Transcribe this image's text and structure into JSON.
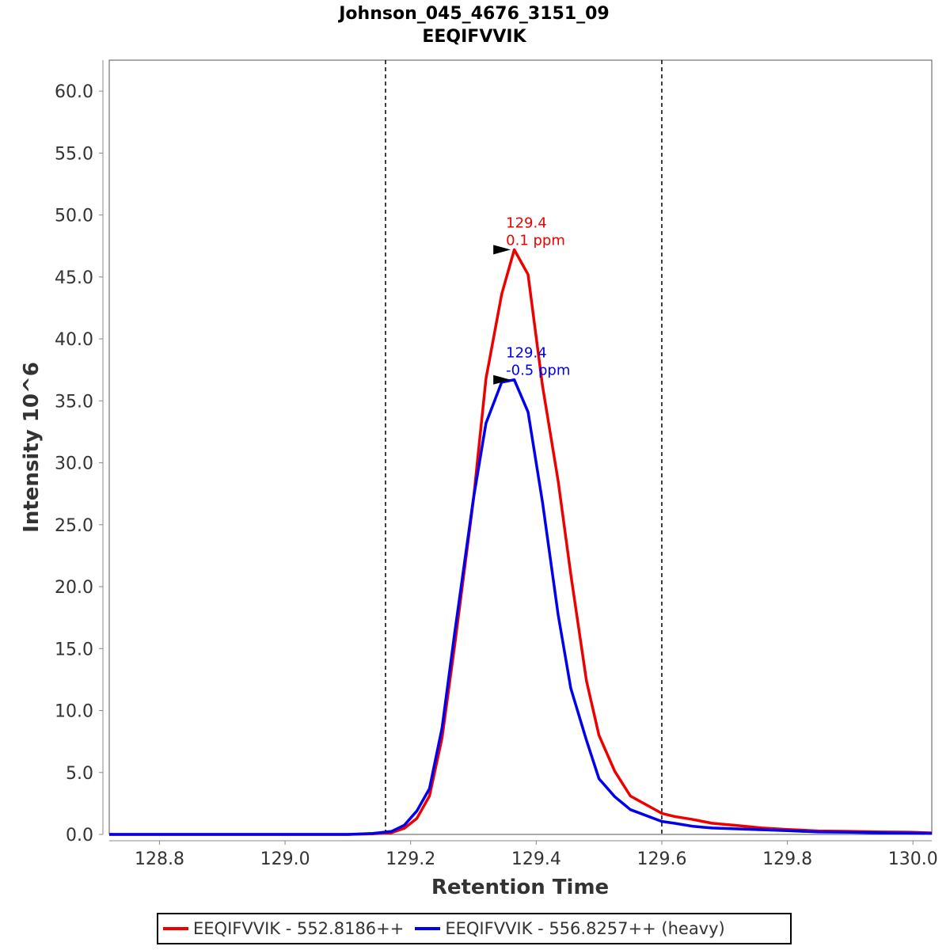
{
  "chart_data": {
    "type": "line",
    "title": "Johnson_045_4676_3151_09",
    "subtitle": "EEQIFVVIK",
    "xlabel": "Retention Time",
    "ylabel": "Intensity 10^6",
    "xlim": [
      128.72,
      130.03
    ],
    "ylim": [
      0,
      62.5
    ],
    "x_ticks": [
      "128.8",
      "129.0",
      "129.2",
      "129.4",
      "129.6",
      "129.8",
      "130.0"
    ],
    "y_ticks": [
      "0.0",
      "5.0",
      "10.0",
      "15.0",
      "20.0",
      "25.0",
      "30.0",
      "35.0",
      "40.0",
      "45.0",
      "50.0",
      "55.0",
      "60.0"
    ],
    "integration_bounds": [
      129.16,
      129.6
    ],
    "grid": false,
    "legend_position": "bottom",
    "series": [
      {
        "name": "EEQIFVVIK - 552.8186++",
        "color": "#ee0000",
        "x": [
          128.72,
          129.1,
          129.14,
          129.17,
          129.19,
          129.21,
          129.23,
          129.25,
          129.27,
          129.3,
          129.32,
          129.345,
          129.365,
          129.387,
          129.41,
          129.435,
          129.455,
          129.48,
          129.5,
          129.525,
          129.55,
          129.6,
          129.62,
          129.65,
          129.68,
          129.72,
          129.76,
          129.8,
          129.85,
          129.9,
          129.95,
          130.0,
          130.03
        ],
        "y": [
          0,
          0,
          0.05,
          0.15,
          0.5,
          1.3,
          3.1,
          7.8,
          15.2,
          27,
          36.8,
          43.6,
          47.2,
          45.2,
          36.2,
          28.5,
          21,
          12.4,
          8,
          5.1,
          3.1,
          1.7,
          1.45,
          1.2,
          0.9,
          0.72,
          0.52,
          0.4,
          0.28,
          0.25,
          0.2,
          0.18,
          0.12
        ]
      },
      {
        "name": "EEQIFVVIK - 556.8257++ (heavy)",
        "color": "#0000ee",
        "x": [
          128.72,
          129.1,
          129.14,
          129.17,
          129.19,
          129.21,
          129.23,
          129.25,
          129.27,
          129.3,
          129.32,
          129.345,
          129.365,
          129.387,
          129.41,
          129.435,
          129.455,
          129.48,
          129.5,
          129.525,
          129.55,
          129.6,
          129.62,
          129.65,
          129.68,
          129.72,
          129.76,
          129.8,
          129.85,
          129.9,
          129.95,
          130.0,
          130.03
        ],
        "y": [
          0,
          0,
          0.08,
          0.25,
          0.75,
          1.9,
          3.7,
          8.6,
          16.2,
          27.1,
          33.2,
          36.5,
          36.7,
          34.1,
          26.8,
          17.7,
          11.8,
          7.6,
          4.5,
          3.05,
          2,
          1.05,
          0.9,
          0.65,
          0.52,
          0.45,
          0.38,
          0.3,
          0.2,
          0.17,
          0.13,
          0.1,
          0.08
        ]
      }
    ],
    "annotations": [
      {
        "x": 129.367,
        "y": 47.2,
        "lines": [
          "129.4",
          "0.1 ppm"
        ],
        "color": "#ee0000"
      },
      {
        "x": 129.367,
        "y": 36.7,
        "lines": [
          "129.4",
          "-0.5 ppm"
        ],
        "color": "#0000ee"
      }
    ]
  }
}
